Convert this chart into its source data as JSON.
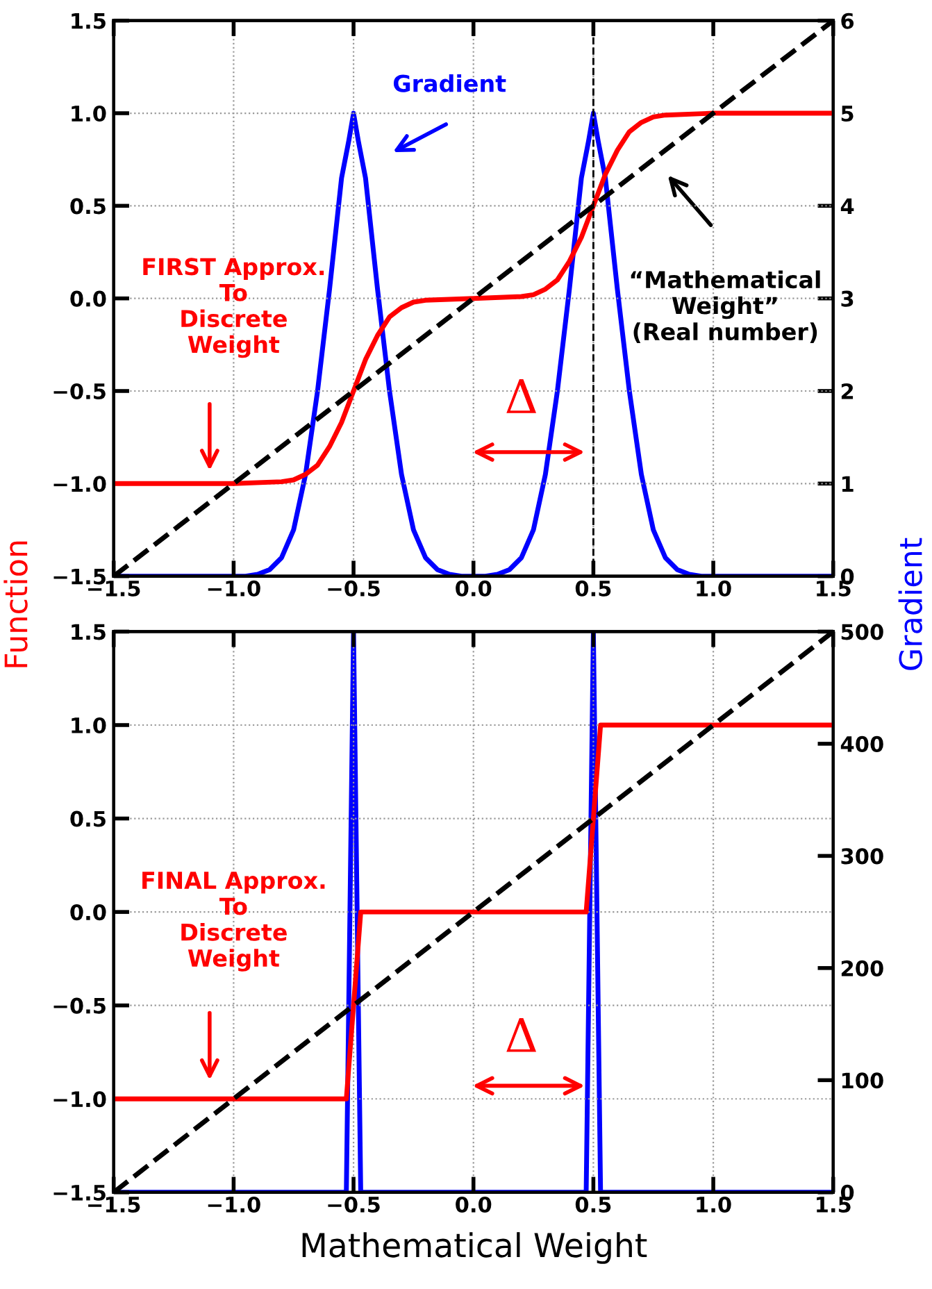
{
  "chart_data": [
    {
      "type": "line",
      "xlim": [
        -1.5,
        1.5
      ],
      "xticks": [
        -1.5,
        {
          "value": -1,
          "label": "−1.0"
        },
        -0.5,
        {
          "value": 0,
          "label": "0.0"
        },
        0.5,
        {
          "value": 1,
          "label": "1.0"
        },
        1.5
      ],
      "ylim": [
        -1.5,
        1.5
      ],
      "yticks": [
        -1.5,
        {
          "value": -1,
          "label": "−1.0"
        },
        -0.5,
        {
          "value": 0,
          "label": "0.0"
        },
        0.5,
        {
          "value": 1,
          "label": "1.0"
        },
        1.5
      ],
      "y2lim": [
        0,
        6
      ],
      "y2ticks": [
        0,
        1,
        2,
        3,
        4,
        5,
        6
      ],
      "ylabel": "Function",
      "y2label": "Gradient",
      "grid": true,
      "ref_lines": [
        {
          "axis": "x",
          "value": 0.5,
          "color": "#000000",
          "line_style": "dashed"
        }
      ],
      "annotations": [
        "Gradient",
        "FIRST Approx.\nTo\nDiscrete\nWeight",
        "“Mathematical\nWeight”\n(Real number)",
        "Δ"
      ],
      "series": [
        {
          "color": "#ff0000",
          "x": [
            -1.5,
            -1.0,
            -0.8,
            -0.75,
            -0.7,
            -0.65,
            -0.6,
            -0.55,
            -0.5,
            -0.45,
            -0.4,
            -0.35,
            -0.3,
            -0.25,
            -0.2,
            0.0,
            0.2,
            0.25,
            0.3,
            0.35,
            0.4,
            0.45,
            0.5,
            0.55,
            0.6,
            0.65,
            0.7,
            0.75,
            0.8,
            1.0,
            1.5
          ],
          "values": [
            -1.0,
            -1.0,
            -0.99,
            -0.98,
            -0.95,
            -0.9,
            -0.8,
            -0.67,
            -0.5,
            -0.33,
            -0.2,
            -0.1,
            -0.05,
            -0.02,
            -0.01,
            0.0,
            0.01,
            0.02,
            0.05,
            0.1,
            0.2,
            0.33,
            0.5,
            0.67,
            0.8,
            0.9,
            0.95,
            0.98,
            0.99,
            1.0,
            1.0
          ]
        },
        {
          "color": "#0000ff",
          "axis": "y2",
          "x": [
            -1.5,
            -0.95,
            -0.9,
            -0.85,
            -0.8,
            -0.75,
            -0.7,
            -0.65,
            -0.6,
            -0.55,
            -0.52,
            -0.5,
            -0.48,
            -0.45,
            -0.4,
            -0.35,
            -0.3,
            -0.25,
            -0.2,
            -0.15,
            -0.1,
            -0.05,
            0.0,
            0.05,
            0.1,
            0.15,
            0.2,
            0.25,
            0.3,
            0.35,
            0.4,
            0.45,
            0.48,
            0.5,
            0.52,
            0.55,
            0.6,
            0.65,
            0.7,
            0.75,
            0.8,
            0.85,
            0.9,
            0.95,
            1.5
          ],
          "values": [
            0.0,
            0.0,
            0.02,
            0.07,
            0.2,
            0.5,
            1.1,
            2.0,
            3.1,
            4.3,
            4.7,
            5.0,
            4.7,
            4.3,
            3.1,
            2.0,
            1.1,
            0.5,
            0.2,
            0.07,
            0.02,
            0.0,
            0.0,
            0.0,
            0.02,
            0.07,
            0.2,
            0.5,
            1.1,
            2.0,
            3.1,
            4.3,
            4.7,
            5.0,
            4.7,
            4.3,
            3.1,
            2.0,
            1.1,
            0.5,
            0.2,
            0.07,
            0.02,
            0.0,
            0.0
          ]
        },
        {
          "color": "#000000",
          "line_style": "dashed",
          "x": [
            -1.5,
            1.5
          ],
          "values": [
            -1.5,
            1.5
          ]
        }
      ]
    },
    {
      "type": "line",
      "xlim": [
        -1.5,
        1.5
      ],
      "xticks": [
        -1.5,
        {
          "value": -1,
          "label": "−1.0"
        },
        -0.5,
        {
          "value": 0,
          "label": "0.0"
        },
        0.5,
        {
          "value": 1,
          "label": "1.0"
        },
        1.5
      ],
      "ylim": [
        -1.5,
        1.5
      ],
      "yticks": [
        -1.5,
        {
          "value": -1,
          "label": "−1.0"
        },
        -0.5,
        {
          "value": 0,
          "label": "0.0"
        },
        0.5,
        {
          "value": 1,
          "label": "1.0"
        },
        1.5
      ],
      "y2lim": [
        0,
        500
      ],
      "y2ticks": [
        0,
        100,
        200,
        300,
        400,
        500
      ],
      "xlabel": "Mathematical Weight",
      "grid": true,
      "annotations": [
        "FINAL Approx.\nTo\nDiscrete\nWeight",
        "Δ"
      ],
      "series": [
        {
          "color": "#ff0000",
          "x": [
            -1.5,
            -0.53,
            -0.47,
            0.47,
            0.53,
            1.5
          ],
          "values": [
            -1.0,
            -1.0,
            0.0,
            0.0,
            1.0,
            1.0
          ]
        },
        {
          "color": "#0000ff",
          "axis": "y2",
          "x": [
            -1.5,
            -0.53,
            -0.5,
            -0.47,
            0.47,
            0.5,
            0.53,
            1.5
          ],
          "values": [
            0,
            0,
            500,
            0,
            0,
            500,
            0,
            0
          ]
        },
        {
          "color": "#000000",
          "line_style": "dashed",
          "x": [
            -1.5,
            1.5
          ],
          "values": [
            -1.5,
            1.5
          ]
        }
      ]
    }
  ]
}
